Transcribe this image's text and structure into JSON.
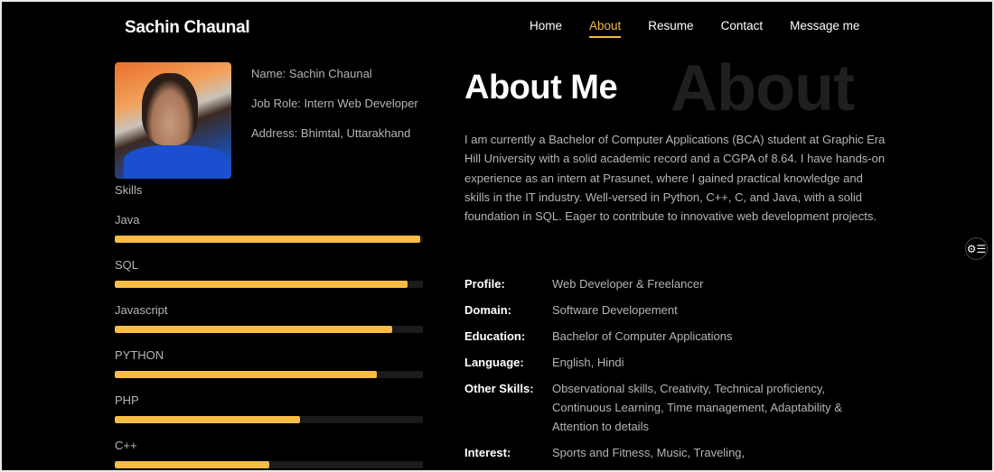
{
  "header": {
    "logo": "Sachin Chaunal",
    "nav": [
      {
        "label": "Home"
      },
      {
        "label": "About",
        "active": true
      },
      {
        "label": "Resume"
      },
      {
        "label": "Contact"
      },
      {
        "label": "Message me"
      }
    ]
  },
  "profile": {
    "name": "Name: Sachin Chaunal",
    "role": "Job Role: Intern Web Developer",
    "address": "Address: Bhimtal, Uttarakhand"
  },
  "skills": {
    "title": "Skills",
    "items": [
      {
        "label": "Java",
        "percent": 99
      },
      {
        "label": "SQL",
        "percent": 95
      },
      {
        "label": "Javascript",
        "percent": 90
      },
      {
        "label": "PYTHON",
        "percent": 85
      },
      {
        "label": "PHP",
        "percent": 60
      },
      {
        "label": "C++",
        "percent": 50
      }
    ]
  },
  "about": {
    "bg_word": "About",
    "title": "About Me",
    "paragraph": "I am currently a Bachelor of Computer Applications (BCA) student at Graphic Era Hill University with a solid academic record and a CGPA of 8.64. I have hands-on experience as an intern at Prasunet, where I gained practical knowledge and skills in the IT industry. Well-versed in Python, C++, C, and Java, with a solid foundation in SQL. Eager to contribute to innovative web development projects.",
    "details": [
      {
        "key": "Profile:",
        "value": "Web Developer & Freelancer"
      },
      {
        "key": "Domain:",
        "value": "Software Developement"
      },
      {
        "key": "Education:",
        "value": "Bachelor of Computer Applications"
      },
      {
        "key": "Language:",
        "value": "English, Hindi"
      },
      {
        "key": "Other Skills:",
        "value": "Observational skills, Creativity, Technical proficiency, Continuous Learning, Time management, Adaptability & Attention to details"
      },
      {
        "key": "Interest:",
        "value": "Sports and Fitness, Music, Traveling,"
      }
    ]
  },
  "colors": {
    "accent": "#f9bd45",
    "background": "#000000"
  },
  "floating_button": {
    "icon": "settings-list-icon"
  }
}
